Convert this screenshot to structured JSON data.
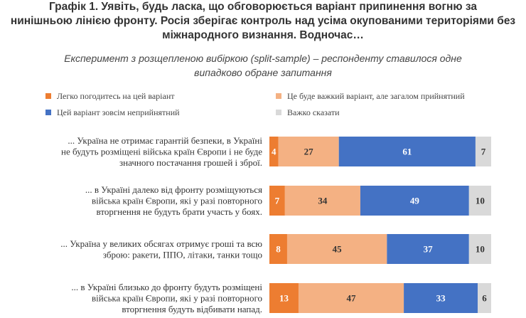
{
  "chart_data": {
    "type": "bar",
    "orientation": "horizontal",
    "stacked": true,
    "title": "Графік 1. Уявіть, будь ласка, що обговорюється варіант припинення вогню за\nнинішньою лінією фронту. Росія зберігає контроль над усіма окупованими територіями без\nміжнародного визнання. Водночас…",
    "subtitle": "Експеримент з розщепленою вибіркою (split-sample) – респонденту ставилося одне\nвипадково обране запитання",
    "legend_position": "top",
    "categories": [
      [
        "... Україна не отримає гарантій безпеки, в Україні",
        "не будуть розміщені війська країн Європи і не буде",
        "значного постачання грошей і зброї."
      ],
      [
        "... в Україні далеко від фронту розміщуються",
        "війська країн Європи, які у разі повторного",
        "вторгнення не будуть брати участь у боях."
      ],
      [
        "... Україна у великих обсягах отримує гроші та всю",
        "зброю: ракети, ППО, літаки, танки тощо"
      ],
      [
        "... в Україні близько до фронту будуть розміщені",
        "війська країн Європи, які у разі повторного",
        "вторгнення будуть відбивати напад."
      ]
    ],
    "series": [
      {
        "name": "Легко погодитесь на цей варіант",
        "color": "#ED7D31",
        "label_color": "#ffffff",
        "values": [
          4,
          7,
          8,
          13
        ]
      },
      {
        "name": "Це буде важкий варіант, але загалом прийнятний",
        "color": "#F4B183",
        "label_color": "#333333",
        "values": [
          27,
          34,
          45,
          47
        ]
      },
      {
        "name": "Цей варіант зовсім неприйнятний",
        "color": "#4472C4",
        "label_color": "#ffffff",
        "values": [
          61,
          49,
          37,
          33
        ]
      },
      {
        "name": "Важко сказати",
        "color": "#D9D9D9",
        "label_color": "#333333",
        "values": [
          7,
          10,
          10,
          6
        ]
      }
    ],
    "xlim": [
      0,
      100
    ],
    "grid": false
  }
}
